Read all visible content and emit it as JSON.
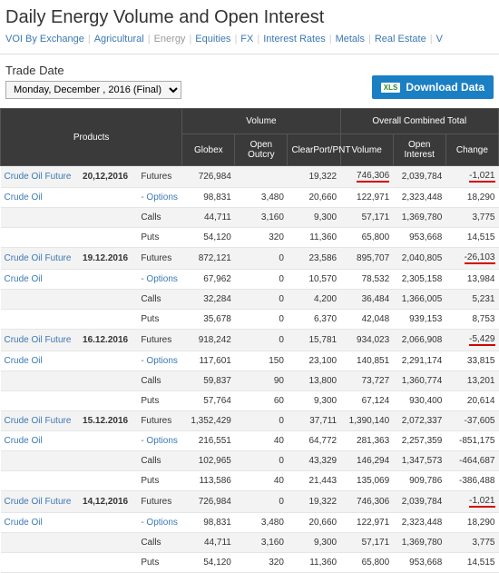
{
  "header": {
    "title": "Daily Energy Volume and Open Interest",
    "tabs": [
      "VOI By Exchange",
      "Agricultural",
      "Energy",
      "Equities",
      "FX",
      "Interest Rates",
      "Metals",
      "Real Estate",
      "V"
    ],
    "active_tab": "Energy"
  },
  "controls": {
    "trade_date_label": "Trade Date",
    "trade_date_value": "Monday, December    , 2016 (Final)",
    "download_label": "Download Data",
    "xls_label": "XLS"
  },
  "table": {
    "headers": {
      "products": "Products",
      "volume_group": "Volume",
      "total_group": "Overall Combined Total",
      "globex": "Globex",
      "open_outcry": "Open Outcry",
      "clearport": "ClearPort/PNT",
      "volume": "Volume",
      "open_interest": "Open Interest",
      "change": "Change"
    },
    "rows": [
      {
        "prod": "Crude Oil Future",
        "date": "20,12,2016",
        "type": "Futures",
        "globex": "726,984",
        "outcry": "",
        "clearport": "19,322",
        "vol": "746,306",
        "oi": "2,039,784",
        "chg": "-1,021",
        "alt": true,
        "vol_hl": true,
        "chg_hl": true
      },
      {
        "prod": "Crude Oil",
        "date": "",
        "type": "- Options",
        "type_link": true,
        "globex": "98,831",
        "outcry": "3,480",
        "clearport": "20,660",
        "vol": "122,971",
        "oi": "2,323,448",
        "chg": "18,290"
      },
      {
        "prod": "",
        "date": "",
        "type": "Calls",
        "globex": "44,711",
        "outcry": "3,160",
        "clearport": "9,300",
        "vol": "57,171",
        "oi": "1,369,780",
        "chg": "3,775",
        "alt": true
      },
      {
        "prod": "",
        "date": "",
        "type": "Puts",
        "globex": "54,120",
        "outcry": "320",
        "clearport": "11,360",
        "vol": "65,800",
        "oi": "953,668",
        "chg": "14,515"
      },
      {
        "prod": "Crude Oil Future",
        "date": "19.12.2016",
        "type": "Futures",
        "globex": "872,121",
        "outcry": "0",
        "clearport": "23,586",
        "vol": "895,707",
        "oi": "2,040,805",
        "chg": "-26,103",
        "alt": true,
        "chg_hl": true
      },
      {
        "prod": "Crude Oil",
        "date": "",
        "type": "- Options",
        "type_link": true,
        "globex": "67,962",
        "outcry": "0",
        "clearport": "10,570",
        "vol": "78,532",
        "oi": "2,305,158",
        "chg": "13,984"
      },
      {
        "prod": "",
        "date": "",
        "type": "Calls",
        "globex": "32,284",
        "outcry": "0",
        "clearport": "4,200",
        "vol": "36,484",
        "oi": "1,366,005",
        "chg": "5,231",
        "alt": true
      },
      {
        "prod": "",
        "date": "",
        "type": "Puts",
        "globex": "35,678",
        "outcry": "0",
        "clearport": "6,370",
        "vol": "42,048",
        "oi": "939,153",
        "chg": "8,753"
      },
      {
        "prod": "Crude Oil Future",
        "date": "16.12.2016",
        "type": "Futures",
        "globex": "918,242",
        "outcry": "0",
        "clearport": "15,781",
        "vol": "934,023",
        "oi": "2,066,908",
        "chg": "-5,429",
        "alt": true,
        "chg_hl": true
      },
      {
        "prod": "Crude Oil",
        "date": "",
        "type": "- Options",
        "type_link": true,
        "globex": "117,601",
        "outcry": "150",
        "clearport": "23,100",
        "vol": "140,851",
        "oi": "2,291,174",
        "chg": "33,815"
      },
      {
        "prod": "",
        "date": "",
        "type": "Calls",
        "globex": "59,837",
        "outcry": "90",
        "clearport": "13,800",
        "vol": "73,727",
        "oi": "1,360,774",
        "chg": "13,201",
        "alt": true
      },
      {
        "prod": "",
        "date": "",
        "type": "Puts",
        "globex": "57,764",
        "outcry": "60",
        "clearport": "9,300",
        "vol": "67,124",
        "oi": "930,400",
        "chg": "20,614"
      },
      {
        "prod": "Crude Oil Future",
        "date": "15.12.2016",
        "type": "Futures",
        "globex": "1,352,429",
        "outcry": "0",
        "clearport": "37,711",
        "vol": "1,390,140",
        "oi": "2,072,337",
        "chg": "-37,605",
        "alt": true
      },
      {
        "prod": "Crude Oil",
        "date": "",
        "type": "- Options",
        "type_link": true,
        "globex": "216,551",
        "outcry": "40",
        "clearport": "64,772",
        "vol": "281,363",
        "oi": "2,257,359",
        "chg": "-851,175"
      },
      {
        "prod": "",
        "date": "",
        "type": "Calls",
        "globex": "102,965",
        "outcry": "0",
        "clearport": "43,329",
        "vol": "146,294",
        "oi": "1,347,573",
        "chg": "-464,687",
        "alt": true
      },
      {
        "prod": "",
        "date": "",
        "type": "Puts",
        "globex": "113,586",
        "outcry": "40",
        "clearport": "21,443",
        "vol": "135,069",
        "oi": "909,786",
        "chg": "-386,488"
      },
      {
        "prod": "Crude Oil Future",
        "date": "14,12,2016",
        "type": "Futures",
        "globex": "726,984",
        "outcry": "0",
        "clearport": "19,322",
        "vol": "746,306",
        "oi": "2,039,784",
        "chg": "-1,021",
        "alt": true,
        "chg_hl": true
      },
      {
        "prod": "Crude Oil",
        "date": "",
        "type": "- Options",
        "type_link": true,
        "globex": "98,831",
        "outcry": "3,480",
        "clearport": "20,660",
        "vol": "122,971",
        "oi": "2,323,448",
        "chg": "18,290"
      },
      {
        "prod": "",
        "date": "",
        "type": "Calls",
        "globex": "44,711",
        "outcry": "3,160",
        "clearport": "9,300",
        "vol": "57,171",
        "oi": "1,369,780",
        "chg": "3,775",
        "alt": true
      },
      {
        "prod": "",
        "date": "",
        "type": "Puts",
        "globex": "54,120",
        "outcry": "320",
        "clearport": "11,360",
        "vol": "65,800",
        "oi": "953,668",
        "chg": "14,515"
      }
    ]
  },
  "colors": {
    "link": "#3b78b5",
    "header_bg": "#3a3a3a",
    "alt_row": "#f3f3f3",
    "highlight": "#d40000",
    "download_btn": "#1b7fc4"
  }
}
